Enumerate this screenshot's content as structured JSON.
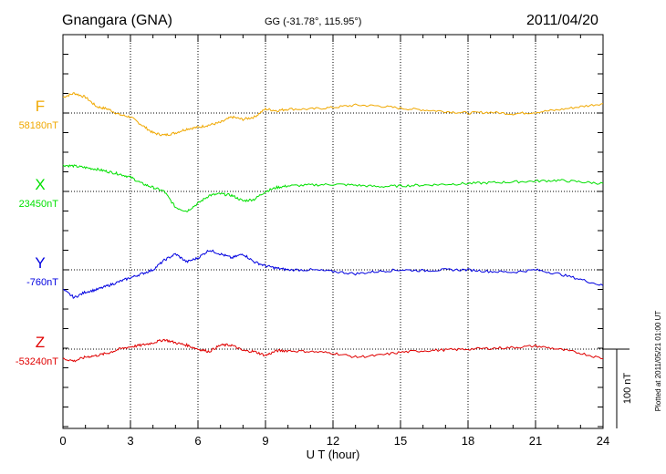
{
  "header": {
    "station": "Gnangara (GNA)",
    "coords": "GG (-31.78°, 115.95°)",
    "date": "2011/04/20"
  },
  "footer": {
    "plotted_note": "Plotted at 2011/05/21 01:00 UT",
    "scale_label": "100 nT"
  },
  "colors": {
    "F": "#f0a800",
    "X": "#00e000",
    "Y": "#0000e0",
    "Z": "#e00000"
  },
  "chart_data": {
    "type": "line",
    "xlabel": "U T (hour)",
    "ylabel": "",
    "x_range": [
      0,
      24
    ],
    "x_ticks": [
      0,
      3,
      6,
      9,
      12,
      15,
      18,
      21,
      24
    ],
    "x_tick_labels": [
      "0",
      "3",
      "6",
      "9",
      "12",
      "15",
      "18",
      "21",
      "24"
    ],
    "grid": true,
    "scale_bar_nT": 100,
    "x": [
      0,
      0.5,
      1,
      1.5,
      2,
      2.5,
      3,
      3.5,
      4,
      4.5,
      5,
      5.5,
      6,
      6.5,
      7,
      7.5,
      8,
      8.5,
      9,
      9.5,
      10,
      11,
      12,
      13,
      14,
      15,
      16,
      17,
      18,
      19,
      20,
      21,
      22,
      23,
      24
    ],
    "series": [
      {
        "name": "F",
        "baseline_label": "58180nT",
        "values": [
          20,
          25,
          20,
          8,
          5,
          -2,
          -5,
          -15,
          -25,
          -28,
          -25,
          -20,
          -18,
          -15,
          -12,
          -5,
          -8,
          -5,
          5,
          3,
          5,
          5,
          7,
          10,
          9,
          6,
          4,
          2,
          0,
          1,
          -1,
          1,
          4,
          8,
          12
        ]
      },
      {
        "name": "X",
        "baseline_label": "23450nT",
        "values": [
          33,
          32,
          30,
          28,
          25,
          22,
          18,
          10,
          5,
          0,
          -20,
          -25,
          -15,
          -5,
          -3,
          -5,
          -12,
          -10,
          0,
          5,
          7,
          8,
          9,
          8,
          6,
          7,
          8,
          9,
          10,
          11,
          12,
          13,
          14,
          12,
          10
        ]
      },
      {
        "name": "Y",
        "baseline_label": "-760nT",
        "values": [
          -25,
          -35,
          -28,
          -25,
          -20,
          -15,
          -10,
          -5,
          0,
          12,
          20,
          10,
          15,
          25,
          20,
          15,
          20,
          10,
          5,
          2,
          0,
          0,
          -2,
          -5,
          -2,
          0,
          -1,
          0,
          0,
          -2,
          -3,
          0,
          -5,
          -12,
          -20
        ]
      },
      {
        "name": "Z",
        "baseline_label": "-53240nT",
        "values": [
          -12,
          -15,
          -10,
          -8,
          -5,
          0,
          3,
          5,
          8,
          12,
          8,
          5,
          0,
          -3,
          5,
          5,
          -2,
          -3,
          -8,
          -2,
          -2,
          -3,
          -5,
          -10,
          -8,
          -4,
          -2,
          -1,
          0,
          1,
          2,
          4,
          0,
          -5,
          -12
        ]
      }
    ]
  }
}
